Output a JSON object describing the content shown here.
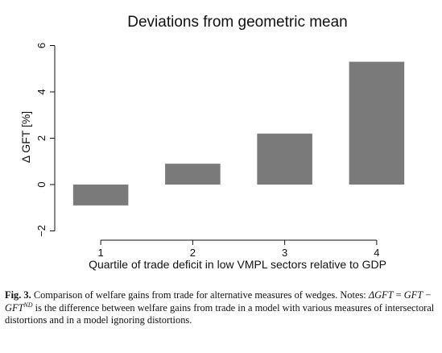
{
  "chart_data": {
    "type": "bar",
    "title": "Deviations from geometric mean",
    "xlabel": "Quartile of trade deficit in low VMPL sectors relative to GDP",
    "ylabel": "Δ GFT [%]",
    "categories": [
      "1",
      "2",
      "3",
      "4"
    ],
    "values": [
      -0.9,
      0.9,
      2.2,
      5.3
    ],
    "ylim": [
      -2.4,
      6.4
    ],
    "yticks": [
      -2,
      0,
      2,
      4,
      6
    ],
    "grid": false,
    "bar_color": "#7a7a7a"
  },
  "caption": {
    "label": "Fig. 3.",
    "title": "Comparison of welfare gains from trade for alternative measures of wedges.",
    "notes_label": "Notes:",
    "delta_lhs": "ΔGFT",
    "equals": "=",
    "gft": "GFT",
    "minus": "−",
    "gft_nd": "GFT",
    "nd_sup": "ND",
    "notes_rest": "is the difference between welfare gains from trade in a model with various measures of intersectoral distortions and in a model ignoring distortions."
  }
}
